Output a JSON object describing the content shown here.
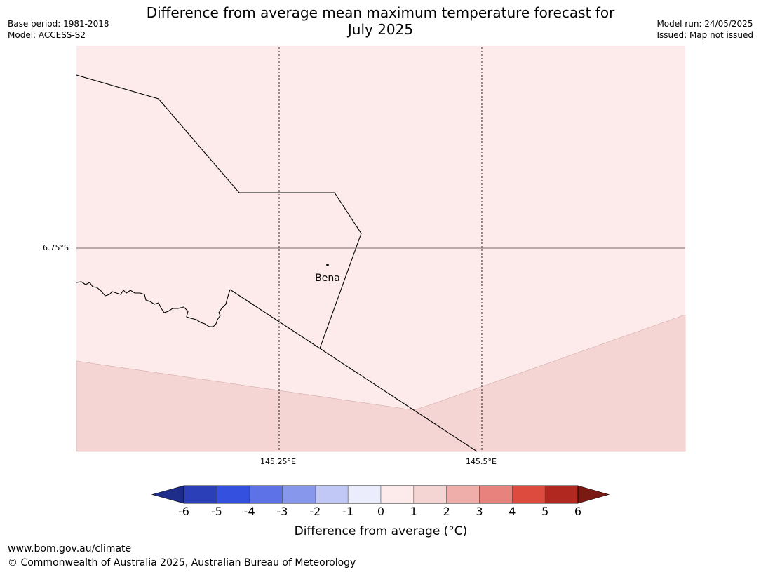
{
  "header": {
    "title_line1": "Difference from average mean maximum temperature forecast for",
    "title_line2": "July 2025",
    "base_period": "Base period: 1981-2018",
    "model": "Model: ACCESS-S2",
    "model_run": "Model run: 24/05/2025",
    "issued": "Issued: Map not issued"
  },
  "map": {
    "place_label": "Bena",
    "lat_label": "6.75°S",
    "lon_labels": [
      "145.25°E",
      "145.5°E"
    ],
    "colors": {
      "band_0_1": "#fcebea",
      "band_1_2": "#f5d5d3",
      "border": "#000000"
    }
  },
  "colorbar": {
    "ticks": [
      "-6",
      "-5",
      "-4",
      "-3",
      "-2",
      "-1",
      "0",
      "1",
      "2",
      "3",
      "4",
      "5",
      "6"
    ],
    "colors": [
      "#1f2d8a",
      "#2a3fb8",
      "#3350df",
      "#5c72e6",
      "#8797ec",
      "#c1c8f6",
      "#ebedfd",
      "#fcebea",
      "#f5d5d3",
      "#efaea9",
      "#e7837c",
      "#dd4b3e",
      "#b0281f",
      "#7a1a13"
    ],
    "label": "Difference from average (°C)"
  },
  "footer": {
    "url": "www.bom.gov.au/climate",
    "copyright": "© Commonwealth of Australia 2025, Australian Bureau of Meteorology"
  }
}
